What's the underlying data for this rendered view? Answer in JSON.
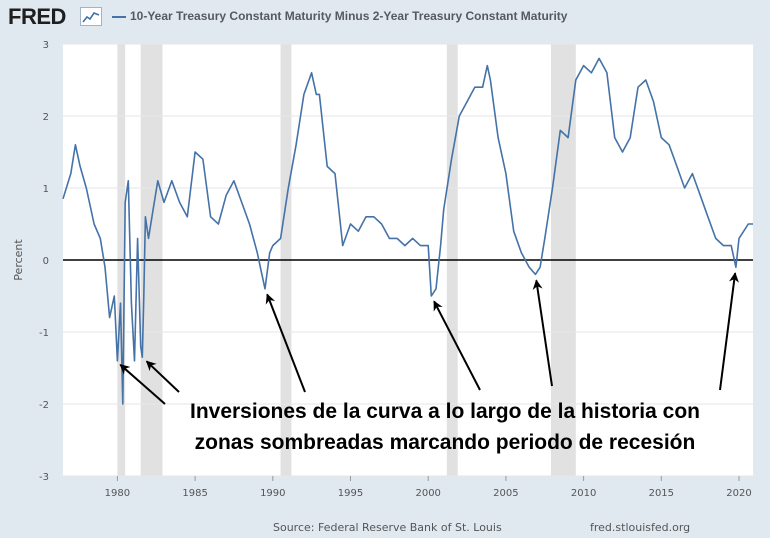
{
  "header": {
    "logo": "FRED",
    "logo_icon": "line-graph-icon",
    "series_title": "10-Year Treasury Constant Maturity Minus 2-Year Treasury Constant Maturity"
  },
  "footer": {
    "source": "Source: Federal Reserve Bank of St. Louis",
    "url": "fred.stlouisfed.org"
  },
  "annotation": {
    "line1": "Inversiones de la curva a lo largo de la historia con",
    "line2": "zonas sombreadas marcando periodo de recesión"
  },
  "colors": {
    "series": "#4572a7",
    "recession": "#e1e1e1",
    "zero_line": "#000000",
    "background": "#e1e9f0"
  },
  "chart_data": {
    "type": "line",
    "title": "10-Year Treasury Constant Maturity Minus 2-Year Treasury Constant Maturity",
    "xlabel": "",
    "ylabel": "Percent",
    "xlim": [
      1976.5,
      2020.9
    ],
    "ylim": [
      -3,
      3
    ],
    "x_ticks": [
      1980,
      1985,
      1990,
      1995,
      2000,
      2005,
      2010,
      2015,
      2020
    ],
    "y_ticks": [
      -3,
      -2,
      -1,
      0,
      1,
      2,
      3
    ],
    "grid": true,
    "recessions": [
      [
        1980.0,
        1980.5
      ],
      [
        1981.5,
        1982.9
      ],
      [
        1990.5,
        1991.2
      ],
      [
        2001.2,
        2001.9
      ],
      [
        2007.9,
        2009.5
      ]
    ],
    "inversion_points": [
      [
        1979.9,
        -1.4
      ],
      [
        1981.6,
        -1.35
      ],
      [
        1989.5,
        -0.4
      ],
      [
        2000.2,
        -0.5
      ],
      [
        2006.9,
        -0.2
      ],
      [
        2019.8,
        -0.1
      ]
    ],
    "series": [
      {
        "name": "10-Year Treasury Constant Maturity Minus 2-Year Treasury Constant Maturity",
        "x": [
          1976.5,
          1977.0,
          1977.3,
          1977.6,
          1978.0,
          1978.5,
          1978.9,
          1979.2,
          1979.5,
          1979.8,
          1980.0,
          1980.2,
          1980.35,
          1980.5,
          1980.7,
          1980.9,
          1981.1,
          1981.3,
          1981.5,
          1981.6,
          1981.7,
          1981.8,
          1982.0,
          1982.3,
          1982.6,
          1983.0,
          1983.5,
          1984.0,
          1984.5,
          1985.0,
          1985.5,
          1986.0,
          1986.5,
          1987.0,
          1987.5,
          1988.0,
          1988.5,
          1989.0,
          1989.3,
          1989.5,
          1989.8,
          1990.0,
          1990.5,
          1991.0,
          1991.5,
          1992.0,
          1992.5,
          1992.8,
          1993.0,
          1993.5,
          1994.0,
          1994.5,
          1995.0,
          1995.5,
          1996.0,
          1996.5,
          1997.0,
          1997.5,
          1998.0,
          1998.5,
          1999.0,
          1999.5,
          2000.0,
          2000.2,
          2000.5,
          2000.8,
          2001.0,
          2001.5,
          2002.0,
          2002.5,
          2003.0,
          2003.5,
          2003.8,
          2004.0,
          2004.5,
          2005.0,
          2005.5,
          2006.0,
          2006.5,
          2006.9,
          2007.2,
          2007.5,
          2008.0,
          2008.5,
          2009.0,
          2009.5,
          2010.0,
          2010.5,
          2011.0,
          2011.5,
          2012.0,
          2012.5,
          2013.0,
          2013.5,
          2014.0,
          2014.5,
          2015.0,
          2015.5,
          2016.0,
          2016.5,
          2017.0,
          2017.5,
          2018.0,
          2018.5,
          2019.0,
          2019.5,
          2019.8,
          2020.0,
          2020.3,
          2020.6,
          2020.9
        ],
        "values": [
          0.85,
          1.2,
          1.6,
          1.3,
          1.0,
          0.5,
          0.3,
          -0.1,
          -0.8,
          -0.5,
          -1.4,
          -0.6,
          -2.0,
          0.8,
          1.1,
          -0.6,
          -1.4,
          0.3,
          -1.2,
          -1.35,
          -0.5,
          0.6,
          0.3,
          0.7,
          1.1,
          0.8,
          1.1,
          0.8,
          0.6,
          1.5,
          1.4,
          0.6,
          0.5,
          0.9,
          1.1,
          0.8,
          0.5,
          0.1,
          -0.2,
          -0.4,
          0.1,
          0.2,
          0.3,
          1.0,
          1.6,
          2.3,
          2.6,
          2.3,
          2.3,
          1.3,
          1.2,
          0.2,
          0.5,
          0.4,
          0.6,
          0.6,
          0.5,
          0.3,
          0.3,
          0.2,
          0.3,
          0.2,
          0.2,
          -0.5,
          -0.4,
          0.2,
          0.7,
          1.4,
          2.0,
          2.2,
          2.4,
          2.4,
          2.7,
          2.5,
          1.7,
          1.2,
          0.4,
          0.1,
          -0.1,
          -0.2,
          -0.1,
          0.3,
          1.0,
          1.8,
          1.7,
          2.5,
          2.7,
          2.6,
          2.8,
          2.6,
          1.7,
          1.5,
          1.7,
          2.4,
          2.5,
          2.2,
          1.7,
          1.6,
          1.3,
          1.0,
          1.2,
          0.9,
          0.6,
          0.3,
          0.2,
          0.2,
          -0.1,
          0.3,
          0.4,
          0.5,
          0.5
        ]
      }
    ]
  }
}
